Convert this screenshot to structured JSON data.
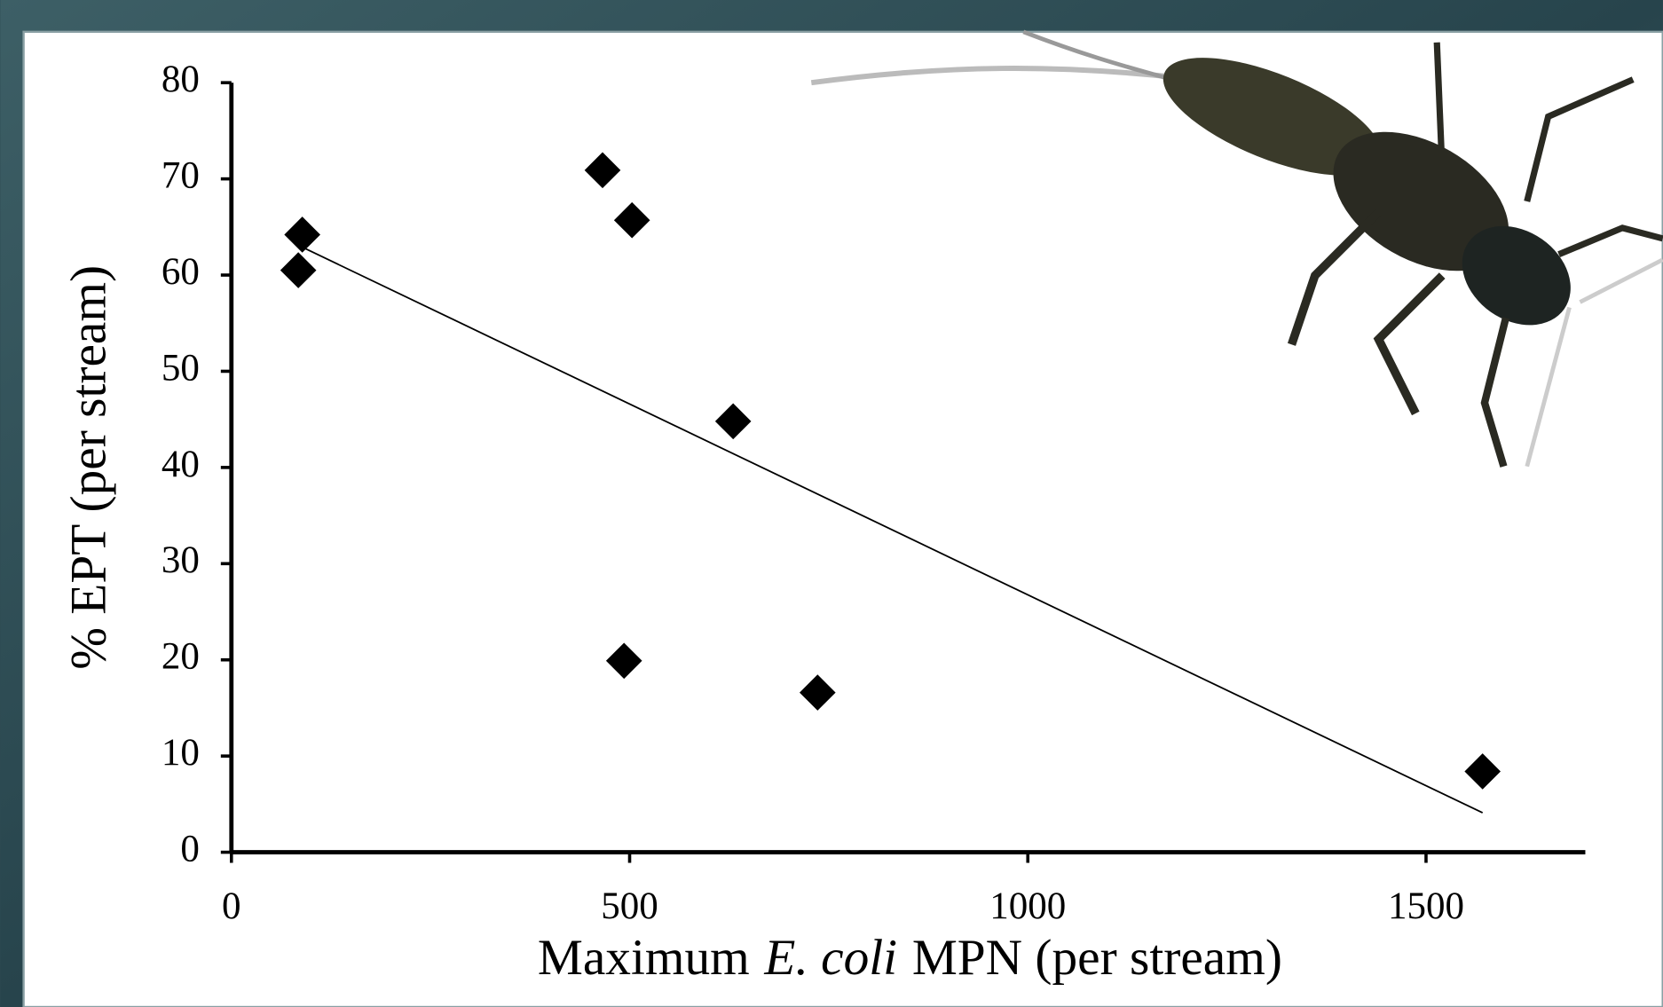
{
  "chart_data": {
    "type": "scatter",
    "x_label_parts": [
      "Maximum",
      "E. coli",
      "MPN (per stream)"
    ],
    "y_label": "% EPT (per stream)",
    "x": [
      89,
      84,
      466,
      503,
      493,
      630,
      736,
      1571
    ],
    "values": [
      64.2,
      60.5,
      70.9,
      65.7,
      19.9,
      44.8,
      16.6,
      8.4
    ],
    "color": "#000000",
    "trendline": {
      "x": [
        89,
        1571
      ],
      "values": [
        62.9,
        4.1
      ],
      "color": "#000000"
    },
    "xlim": [
      0,
      1700
    ],
    "xticks": [
      0,
      500,
      1000,
      1500
    ],
    "ylim": [
      0,
      80
    ],
    "yticks": [
      0,
      10,
      20,
      30,
      40,
      50,
      60,
      70,
      80
    ],
    "grid": false
  }
}
